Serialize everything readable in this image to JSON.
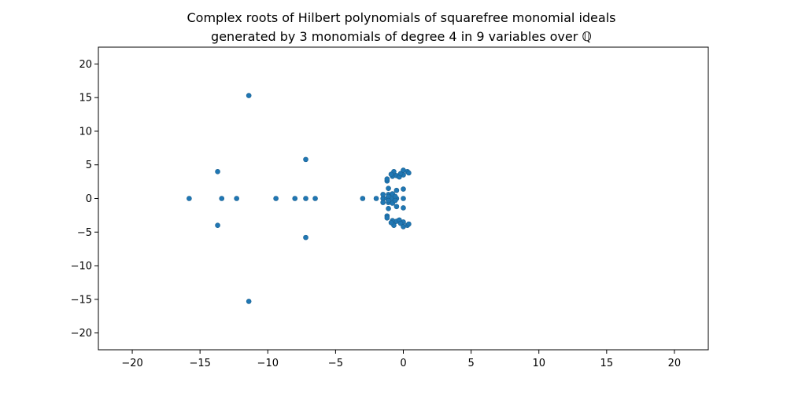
{
  "chart_data": {
    "type": "scatter",
    "title": [
      "Complex roots of Hilbert polynomials of squarefree monomial ideals",
      "generated by 3 monomials of degree 4 in 9 variables over ℚ"
    ],
    "xlabel": "",
    "ylabel": "",
    "xlim": [
      -22.5,
      22.5
    ],
    "ylim": [
      -22.5,
      22.5
    ],
    "xticks": [
      -20,
      -15,
      -10,
      -5,
      0,
      5,
      10,
      15,
      20
    ],
    "yticks": [
      -20,
      -15,
      -10,
      -5,
      0,
      5,
      10,
      15,
      20
    ],
    "grid": false,
    "marker_color": "#1f77b4",
    "marker_edge_color": "#1a5f8f",
    "points": [
      [
        -11.4,
        15.3
      ],
      [
        -11.4,
        -15.3
      ],
      [
        -13.7,
        4.0
      ],
      [
        -13.7,
        -4.0
      ],
      [
        -7.2,
        5.8
      ],
      [
        -7.2,
        -5.8
      ],
      [
        -15.8,
        0.0
      ],
      [
        -13.4,
        0.0
      ],
      [
        -12.3,
        0.0
      ],
      [
        -9.4,
        0.0
      ],
      [
        -8.0,
        0.0
      ],
      [
        -7.2,
        0.0
      ],
      [
        -6.5,
        0.0
      ],
      [
        -3.0,
        0.0
      ],
      [
        -2.0,
        0.0
      ],
      [
        -1.5,
        0.0
      ],
      [
        -1.2,
        0.0
      ],
      [
        -0.9,
        0.0
      ],
      [
        -0.5,
        0.0
      ],
      [
        0.0,
        0.0
      ],
      [
        -1.5,
        0.6
      ],
      [
        -1.5,
        -0.6
      ],
      [
        -1.1,
        0.6
      ],
      [
        -1.1,
        -0.6
      ],
      [
        -0.8,
        0.7
      ],
      [
        -0.8,
        -0.7
      ],
      [
        -1.1,
        0.3
      ],
      [
        -1.1,
        -0.3
      ],
      [
        -0.6,
        0.3
      ],
      [
        -0.6,
        -0.3
      ],
      [
        -1.1,
        1.5
      ],
      [
        -1.1,
        -1.5
      ],
      [
        -0.5,
        1.2
      ],
      [
        -0.5,
        -1.2
      ],
      [
        0.0,
        1.4
      ],
      [
        0.0,
        -1.4
      ],
      [
        -1.2,
        2.6
      ],
      [
        -1.2,
        -2.6
      ],
      [
        -1.2,
        2.9
      ],
      [
        -1.2,
        -2.9
      ],
      [
        -0.8,
        3.3
      ],
      [
        -0.8,
        -3.3
      ],
      [
        -0.7,
        4.0
      ],
      [
        -0.7,
        -4.0
      ],
      [
        -0.5,
        3.4
      ],
      [
        -0.5,
        -3.4
      ],
      [
        -0.3,
        3.2
      ],
      [
        -0.3,
        -3.2
      ],
      [
        0.0,
        3.5
      ],
      [
        0.0,
        -3.5
      ],
      [
        -0.2,
        3.7
      ],
      [
        -0.2,
        -3.7
      ],
      [
        0.0,
        4.2
      ],
      [
        0.0,
        -4.2
      ],
      [
        0.3,
        4.0
      ],
      [
        0.3,
        -4.0
      ],
      [
        0.4,
        3.8
      ],
      [
        0.4,
        -3.8
      ],
      [
        -0.9,
        3.6
      ],
      [
        -0.9,
        -3.6
      ]
    ]
  }
}
